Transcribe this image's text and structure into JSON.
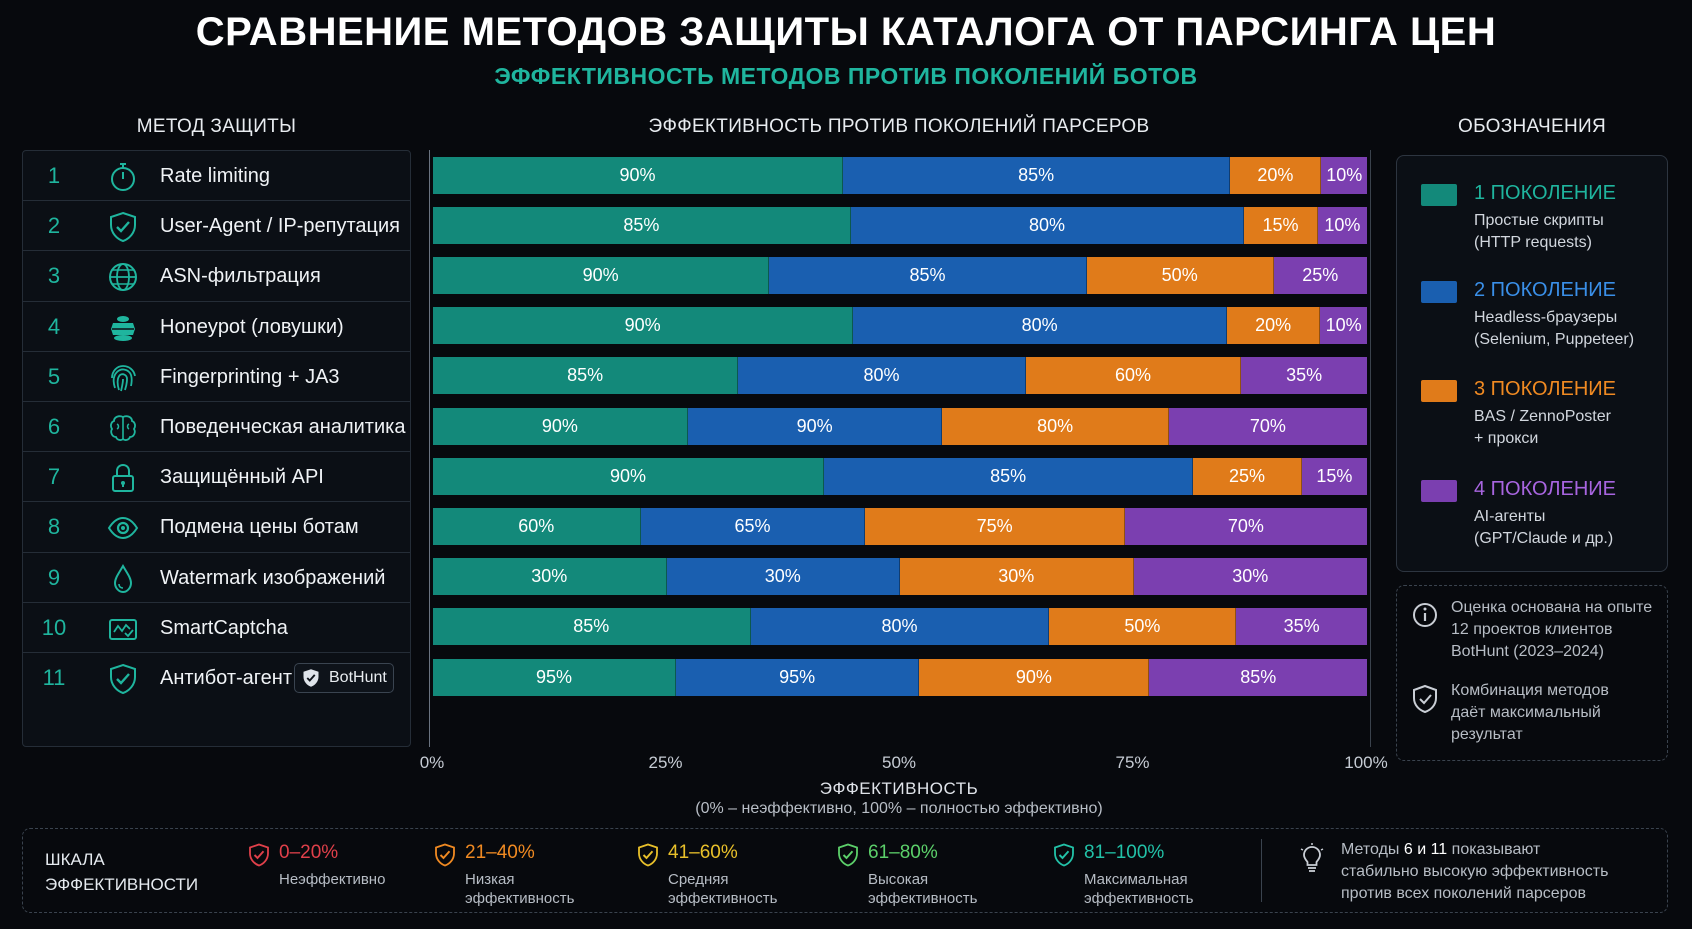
{
  "title": "СРАВНЕНИЕ МЕТОДОВ ЗАЩИТЫ КАТАЛОГА ОТ ПАРСИНГА ЦЕН",
  "subtitle": "ЭФФЕКТИВНОСТЬ МЕТОДОВ ПРОТИВ ПОКОЛЕНИЙ БОТОВ",
  "headers": {
    "methods": "МЕТОД ЗАЩИТЫ",
    "chart": "ЭФФЕКТИВНОСТЬ ПРОТИВ ПОКОЛЕНИЙ ПАРСЕРОВ",
    "legend": "ОБОЗНАЧЕНИЯ"
  },
  "methods": [
    {
      "num": "1",
      "name": "Rate limiting",
      "icon": "stopwatch-icon"
    },
    {
      "num": "2",
      "name": "User-Agent / IP-репутация",
      "icon": "shield-check-icon"
    },
    {
      "num": "3",
      "name": "ASN-фильтрация",
      "icon": "globe-icon"
    },
    {
      "num": "4",
      "name": "Honeypot (ловушки)",
      "icon": "honeypot-icon"
    },
    {
      "num": "5",
      "name": "Fingerprinting + JA3",
      "icon": "fingerprint-icon"
    },
    {
      "num": "6",
      "name": "Поведенческая аналитика",
      "icon": "brain-icon"
    },
    {
      "num": "7",
      "name": "Защищённый API",
      "icon": "padlock-icon"
    },
    {
      "num": "8",
      "name": "Подмена цены ботам",
      "icon": "eye-icon"
    },
    {
      "num": "9",
      "name": "Watermark изображений",
      "icon": "droplet-icon"
    },
    {
      "num": "10",
      "name": "SmartCaptcha",
      "icon": "captcha-icon"
    },
    {
      "num": "11",
      "name": "Антибот-агент",
      "icon": "shield-check-icon",
      "badge": "BotHunt"
    }
  ],
  "chart_data": {
    "type": "bar",
    "orientation": "horizontal",
    "stacked": "normalized",
    "categories": [
      "1",
      "2",
      "3",
      "4",
      "5",
      "6",
      "7",
      "8",
      "9",
      "10",
      "11"
    ],
    "series": [
      {
        "name": "1 ПОКОЛЕНИЕ",
        "color": "#13897a",
        "values": [
          90,
          85,
          90,
          90,
          85,
          90,
          90,
          60,
          30,
          85,
          95
        ]
      },
      {
        "name": "2 ПОКОЛЕНИЕ",
        "color": "#1a5fb0",
        "values": [
          85,
          80,
          85,
          80,
          80,
          90,
          85,
          65,
          30,
          80,
          95
        ]
      },
      {
        "name": "3 ПОКОЛЕНИЕ",
        "color": "#e07b1a",
        "values": [
          20,
          15,
          50,
          20,
          60,
          80,
          25,
          75,
          30,
          50,
          90
        ]
      },
      {
        "name": "4 ПОКОЛЕНИЕ",
        "color": "#7b3fb0",
        "values": [
          10,
          10,
          25,
          10,
          35,
          70,
          15,
          70,
          30,
          35,
          85
        ]
      }
    ],
    "xticks": [
      "0%",
      "25%",
      "50%",
      "75%",
      "100%"
    ],
    "xlim": [
      0,
      100
    ],
    "xlabel": "ЭФФЕКТИВНОСТЬ",
    "xnote": "(0% – неэффективно, 100% – полностью эффективно)"
  },
  "legend": [
    {
      "title": "1 ПОКОЛЕНИЕ",
      "color": "#13897a",
      "text_color": "#1fb59e",
      "desc1": "Простые скрипты",
      "desc2": "(HTTP requests)"
    },
    {
      "title": "2 ПОКОЛЕНИЕ",
      "color": "#1a5fb0",
      "text_color": "#3a8fe8",
      "desc1": "Headless-браузеры",
      "desc2": "(Selenium, Puppeteer)"
    },
    {
      "title": "3 ПОКОЛЕНИЕ",
      "color": "#e07b1a",
      "text_color": "#f08a22",
      "desc1": "BAS / ZennoPoster",
      "desc2": "+ прокси"
    },
    {
      "title": "4 ПОКОЛЕНИЕ",
      "color": "#7b3fb0",
      "text_color": "#a865e0",
      "desc1": "AI-агенты",
      "desc2": "(GPT/Claude и др.)"
    }
  ],
  "notes": [
    {
      "icon": "info-icon",
      "l1": "Оценка основана на опыте",
      "l2": "12 проектов клиентов",
      "l3": "BotHunt (2023–2024)"
    },
    {
      "icon": "shield-check-icon",
      "l1": "Комбинация методов",
      "l2": "даёт максимальный",
      "l3": "результат"
    }
  ],
  "scale": {
    "title1": "ШКАЛА",
    "title2": "ЭФФЕКТИВНОСТИ",
    "items": [
      {
        "range": "0–20%",
        "l1": "Неэффективно",
        "l2": "",
        "color": "#e0404a"
      },
      {
        "range": "21–40%",
        "l1": "Низкая",
        "l2": "эффективность",
        "color": "#f08a22"
      },
      {
        "range": "41–60%",
        "l1": "Средняя",
        "l2": "эффективность",
        "color": "#e8c02a"
      },
      {
        "range": "61–80%",
        "l1": "Высокая",
        "l2": "эффективность",
        "color": "#5cd06a"
      },
      {
        "range": "81–100%",
        "l1": "Максимальная",
        "l2": "эффективность",
        "color": "#22c2a8"
      }
    ],
    "tip_a": "Методы ",
    "tip_b": "6 и 11",
    "tip_c": " показывают",
    "tip_l2": "стабильно высокую эффективность",
    "tip_l3": "против всех поколений парсеров"
  }
}
